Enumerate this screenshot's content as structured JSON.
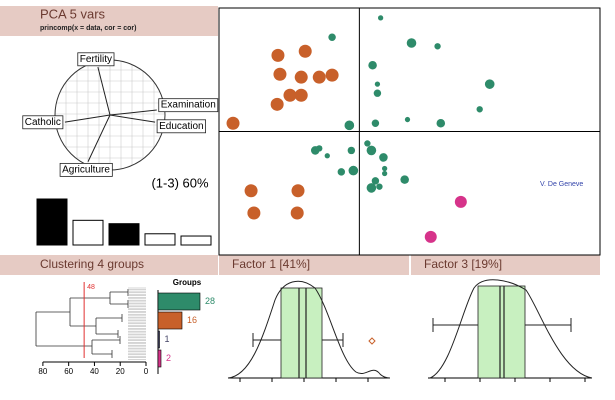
{
  "chart_data": [
    {
      "type": "biplot",
      "title": "PCA  5 vars",
      "subtitle": "princomp(x = data, cor = cor)",
      "variables": [
        "Fertility",
        "Examination",
        "Education",
        "Catholic",
        "Agriculture"
      ],
      "x": [
        -0.22,
        0.85,
        0.82,
        -0.82,
        -0.4
      ],
      "y": [
        0.87,
        0.09,
        -0.13,
        -0.13,
        -0.85
      ],
      "xlim": [
        -1,
        1
      ],
      "ylim": [
        -1,
        1
      ],
      "annotation": "(1-3) 60%"
    },
    {
      "type": "bar",
      "values": [
        2.05,
        1.1,
        0.95,
        0.5,
        0.4
      ],
      "colors": [
        "#000000",
        "#ffffff",
        "#000000",
        "#ffffff",
        "#ffffff"
      ],
      "ylim": [
        0,
        2.05
      ]
    },
    {
      "type": "scatter",
      "xlim": [
        -3.5,
        6
      ],
      "ylim": [
        -3,
        3
      ],
      "annotation": "V. De Geneve",
      "series": [
        {
          "color": "#c8602a",
          "x": [
            -2.03,
            -1.35,
            -1.98,
            -1.45,
            -1.0,
            -0.68,
            -1.73,
            -1.45,
            -2.05,
            -3.15,
            -2.7,
            -1.53,
            -1.55,
            -2.63
          ],
          "y": [
            1.85,
            1.95,
            1.39,
            1.32,
            1.32,
            1.37,
            0.88,
            0.88,
            0.66,
            0.2,
            -1.44,
            -1.44,
            -1.98,
            -1.98
          ]
        },
        {
          "color": "#2e8b6a",
          "x": [
            0.53,
            -0.68,
            1.3,
            1.95,
            0.33,
            0.45,
            0.45,
            3.25,
            3.0,
            2.03,
            1.2,
            0.4,
            -0.25,
            -1.0,
            -1.1,
            -0.8,
            -0.45,
            -0.15,
            0.2,
            0.6,
            0.63,
            0.4,
            0.3,
            0.5,
            1.13,
            0.63,
            -0.2,
            0.3
          ],
          "y": [
            2.76,
            2.29,
            2.15,
            2.07,
            1.61,
            1.15,
            0.93,
            1.15,
            0.54,
            0.2,
            0.29,
            0.2,
            0.15,
            -0.41,
            -0.46,
            -0.59,
            -0.98,
            -0.95,
            -0.29,
            -0.63,
            -0.9,
            -1.2,
            -1.37,
            -1.34,
            -1.17,
            -1.02,
            -0.46,
            -0.46
          ]
        },
        {
          "color": "#d6338a",
          "x": [
            2.53,
            1.78
          ],
          "y": [
            -1.71,
            -2.56
          ]
        }
      ]
    },
    {
      "type": "dendrogram",
      "title": "Clustering  4 groups",
      "cut": 48,
      "xlim": [
        90,
        0
      ],
      "xticks": [
        80,
        60,
        40,
        20,
        0
      ]
    },
    {
      "type": "bar",
      "orientation": "horizontal",
      "title": "Groups",
      "values": [
        28,
        16,
        1,
        2
      ],
      "colors": [
        "#2e8b6a",
        "#c8602a",
        "#444466",
        "#d6338a"
      ],
      "xlim": [
        0,
        28
      ]
    },
    {
      "type": "density",
      "title": "Factor 1 [41%]"
    },
    {
      "type": "density",
      "title": "Factor 3 [19%]"
    }
  ]
}
